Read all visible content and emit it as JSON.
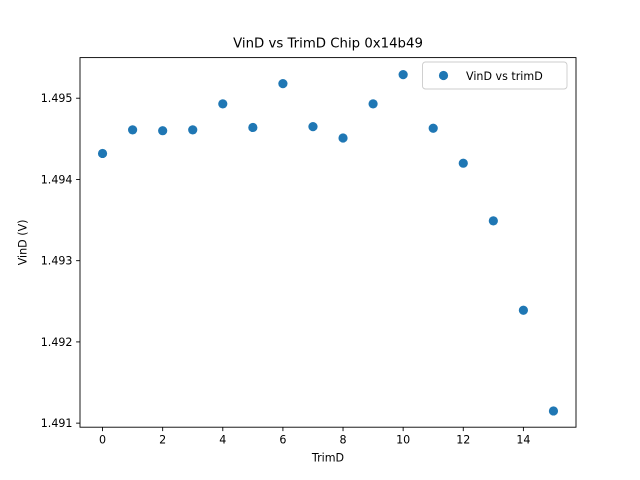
{
  "figure": {
    "background": "#ffffff",
    "spine_color": "#000000",
    "text_color": "#000000"
  },
  "chart_data": {
    "type": "scatter",
    "title": "VinD vs TrimD Chip 0x14b49",
    "xlabel": "TrimD",
    "ylabel": "VinD (V)",
    "grid": false,
    "xlim": [
      -0.75,
      15.75
    ],
    "ylim": [
      1.49095,
      1.4955
    ],
    "xticks": {
      "values": [
        0,
        2,
        4,
        6,
        8,
        10,
        12,
        14
      ],
      "labels": [
        "0",
        "2",
        "4",
        "6",
        "8",
        "10",
        "12",
        "14"
      ]
    },
    "yticks": {
      "values": [
        1.491,
        1.492,
        1.493,
        1.494,
        1.495
      ],
      "labels": [
        "1.491",
        "1.492",
        "1.493",
        "1.494",
        "1.495"
      ]
    },
    "series": [
      {
        "name": "VinD vs trimD",
        "color": "#1f77b4",
        "x": [
          0,
          1,
          2,
          3,
          4,
          5,
          6,
          7,
          8,
          9,
          10,
          11,
          12,
          13,
          14,
          15
        ],
        "y": [
          1.49432,
          1.49461,
          1.4946,
          1.49461,
          1.49493,
          1.49464,
          1.49518,
          1.49465,
          1.49451,
          1.49493,
          1.49529,
          1.49463,
          1.4942,
          1.49349,
          1.49239,
          1.49115
        ]
      }
    ],
    "legend": {
      "position": "upper right",
      "entries": [
        "VinD vs trimD"
      ],
      "border_color": "#cccccc",
      "background": "#ffffff"
    }
  }
}
